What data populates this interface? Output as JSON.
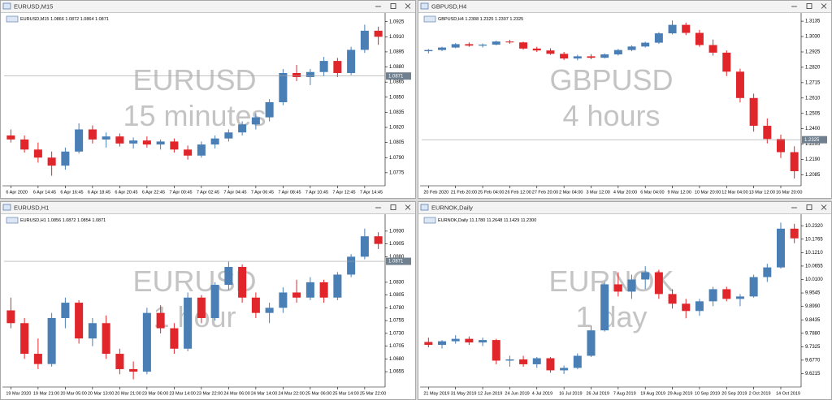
{
  "chart_data": [
    {
      "type": "candlestick",
      "title": "EURUSD,M15",
      "info": "EURUSD,M15  1.0866 1.0872 1.0864 1.0871",
      "watermark": [
        "EURUSD",
        "15 minutes"
      ],
      "up_color": "#4a7fb5",
      "down_color": "#e0262b",
      "categories": [
        "6 Apr 2020",
        null,
        "6 Apr 14:45",
        null,
        "6 Apr 16:45",
        null,
        "6 Apr 18:45",
        null,
        "6 Apr 20:45",
        null,
        "6 Apr 22:45",
        null,
        "7 Apr 00:45",
        null,
        "7 Apr 02:45",
        null,
        "7 Apr 04:45",
        null,
        "7 Apr 06:45",
        null,
        "7 Apr 08:45",
        null,
        "7 Apr 10:45",
        null,
        "7 Apr 12:45",
        null,
        "7 Apr 14:45",
        null
      ],
      "open": [
        1.0812,
        1.0808,
        1.0798,
        1.079,
        1.0782,
        1.0796,
        1.0818,
        1.0808,
        1.0811,
        1.0804,
        1.0807,
        1.0803,
        1.0806,
        1.0798,
        1.0792,
        1.0803,
        1.0809,
        1.0815,
        1.0823,
        1.083,
        1.0845,
        1.0874,
        1.087,
        1.0875,
        1.0886,
        1.0874,
        1.0897,
        1.0916
      ],
      "high": [
        1.0818,
        1.0812,
        1.0805,
        1.0796,
        1.08,
        1.0824,
        1.0822,
        1.0815,
        1.0814,
        1.081,
        1.0811,
        1.0808,
        1.0809,
        1.0802,
        1.0806,
        1.0812,
        1.0818,
        1.0826,
        1.0834,
        1.0848,
        1.0878,
        1.0882,
        1.0878,
        1.089,
        1.0889,
        1.09,
        1.0922,
        1.092
      ],
      "low": [
        1.0805,
        1.0795,
        1.0785,
        1.0772,
        1.0778,
        1.0794,
        1.0804,
        1.08,
        1.0801,
        1.0799,
        1.08,
        1.0798,
        1.0795,
        1.0788,
        1.079,
        1.0799,
        1.0806,
        1.0812,
        1.0818,
        1.0826,
        1.0842,
        1.0866,
        1.0862,
        1.0871,
        1.087,
        1.0872,
        1.0894,
        1.0902
      ],
      "close": [
        1.0808,
        1.0798,
        1.079,
        1.0782,
        1.0796,
        1.0818,
        1.0808,
        1.0811,
        1.0804,
        1.0807,
        1.0803,
        1.0806,
        1.0798,
        1.0792,
        1.0803,
        1.0809,
        1.0815,
        1.0823,
        1.083,
        1.0845,
        1.0874,
        1.087,
        1.0875,
        1.0886,
        1.0874,
        1.0897,
        1.0916,
        1.091
      ],
      "ylim": [
        1.0762,
        1.0932
      ],
      "yticks": [
        1.0925,
        {
          "value": 1.091,
          "label": "1.0910"
        },
        1.0895,
        {
          "value": 1.088,
          "label": "1.0880"
        },
        1.0865,
        {
          "value": 1.085,
          "label": "1.0850"
        },
        1.0835,
        {
          "value": 1.082,
          "label": "1.0820"
        },
        1.0805,
        {
          "value": 1.079,
          "label": "1.0790"
        },
        1.0775
      ],
      "price_line": 1.0871
    },
    {
      "type": "candlestick",
      "title": "GBPUSD,H4",
      "info": "GBPUSD,H4  1.2308 1.2325 1.2307 1.2325",
      "watermark": [
        "GBPUSD",
        "4 hours"
      ],
      "up_color": "#4a7fb5",
      "down_color": "#e0262b",
      "categories": [
        "20 Feb 2020",
        null,
        "21 Feb 20:00",
        null,
        "25 Feb 04:00",
        null,
        "26 Feb 12:00",
        null,
        "27 Feb 20:00",
        null,
        "2 Mar 04:00",
        null,
        "3 Mar 12:00",
        null,
        "4 Mar 20:00",
        null,
        "6 Mar 04:00",
        null,
        "9 Mar 12:00",
        null,
        "10 Mar 20:00",
        null,
        "12 Mar 04:00",
        null,
        "13 Mar 12:00",
        null,
        "16 Mar 20:00",
        null
      ],
      "open": [
        1.293,
        1.2938,
        1.2955,
        1.2978,
        1.2968,
        1.2975,
        1.2996,
        1.299,
        1.2948,
        1.2935,
        1.2912,
        1.288,
        1.2895,
        1.2885,
        1.2908,
        1.2938,
        1.2962,
        1.2988,
        1.3052,
        1.311,
        1.3055,
        1.2972,
        1.292,
        1.279,
        1.261,
        1.242,
        1.233,
        1.224
      ],
      "high": [
        1.2945,
        1.296,
        1.2985,
        1.299,
        1.2982,
        1.3002,
        1.3008,
        1.2995,
        1.296,
        1.295,
        1.2925,
        1.2905,
        1.291,
        1.2915,
        1.2945,
        1.297,
        1.2995,
        1.306,
        1.314,
        1.3125,
        1.3075,
        1.301,
        1.2935,
        1.281,
        1.264,
        1.247,
        1.236,
        1.228
      ],
      "low": [
        1.2915,
        1.293,
        1.295,
        1.296,
        1.2955,
        1.297,
        1.298,
        1.294,
        1.2925,
        1.2905,
        1.287,
        1.2868,
        1.2875,
        1.288,
        1.29,
        1.293,
        1.2955,
        1.298,
        1.3045,
        1.304,
        1.296,
        1.29,
        1.276,
        1.258,
        1.238,
        1.23,
        1.22,
        1.206
      ],
      "close": [
        1.2938,
        1.2955,
        1.2978,
        1.2968,
        1.2975,
        1.2996,
        1.299,
        1.2948,
        1.2935,
        1.2912,
        1.288,
        1.2895,
        1.2885,
        1.2908,
        1.2938,
        1.2962,
        1.2988,
        1.3052,
        1.311,
        1.3055,
        1.2972,
        1.292,
        1.279,
        1.261,
        1.242,
        1.233,
        1.224,
        1.211
      ],
      "ylim": [
        1.201,
        1.318
      ],
      "yticks": [
        1.3135,
        {
          "value": 1.303,
          "label": "1.3030"
        },
        1.2925,
        {
          "value": 1.282,
          "label": "1.2820"
        },
        1.2715,
        {
          "value": 1.261,
          "label": "1.2610"
        },
        1.2505,
        {
          "value": 1.24,
          "label": "1.2400"
        },
        1.2295,
        {
          "value": 1.219,
          "label": "1.2190"
        },
        1.2085
      ],
      "price_line": 1.2325
    },
    {
      "type": "candlestick",
      "title": "EURUSD,H1",
      "info": "EURUSD,H1  1.0856 1.0872 1.0854 1.0871",
      "watermark": [
        "EURUSD",
        "1 hour"
      ],
      "up_color": "#4a7fb5",
      "down_color": "#e0262b",
      "categories": [
        "19 Mar 2020",
        null,
        "19 Mar 21:00",
        null,
        "20 Mar 05:00",
        null,
        "20 Mar 13:00",
        null,
        "20 Mar 21:00",
        null,
        "23 Mar 06:00",
        null,
        "23 Mar 14:00",
        null,
        "23 Mar 22:00",
        null,
        "24 Mar 06:00",
        null,
        "24 Mar 14:00",
        null,
        "24 Mar 22:00",
        null,
        "25 Mar 06:00",
        null,
        "25 Mar 14:00",
        null,
        "25 Mar 22:00",
        null
      ],
      "open": [
        1.0775,
        1.075,
        1.069,
        1.067,
        1.076,
        1.079,
        1.072,
        1.075,
        1.069,
        1.066,
        1.0655,
        1.077,
        1.074,
        1.07,
        1.08,
        1.076,
        1.0825,
        1.086,
        1.08,
        1.077,
        1.078,
        1.081,
        1.08,
        1.083,
        1.08,
        1.0845,
        1.088,
        1.092
      ],
      "high": [
        1.08,
        1.076,
        1.072,
        1.077,
        1.08,
        1.0795,
        1.076,
        1.0765,
        1.07,
        1.0675,
        1.078,
        1.0785,
        1.075,
        1.081,
        1.0805,
        1.083,
        1.087,
        1.0865,
        1.081,
        1.079,
        1.082,
        1.0835,
        1.084,
        1.0835,
        1.085,
        1.0885,
        1.0935,
        1.0928
      ],
      "low": [
        1.074,
        1.068,
        1.066,
        1.0665,
        1.074,
        1.071,
        1.0705,
        1.068,
        1.065,
        1.064,
        1.065,
        1.073,
        1.069,
        1.0695,
        1.075,
        1.0755,
        1.0815,
        1.079,
        1.076,
        1.075,
        1.077,
        1.079,
        1.0795,
        1.079,
        1.0795,
        1.084,
        1.0875,
        1.0895
      ],
      "close": [
        1.075,
        1.069,
        1.067,
        1.076,
        1.079,
        1.072,
        1.075,
        1.069,
        1.066,
        1.0655,
        1.077,
        1.074,
        1.07,
        1.08,
        1.076,
        1.0825,
        1.086,
        1.08,
        1.077,
        1.078,
        1.081,
        1.08,
        1.083,
        1.08,
        1.0845,
        1.088,
        1.092,
        1.0905
      ],
      "ylim": [
        1.0625,
        1.096
      ],
      "yticks": [
        {
          "value": 1.093,
          "label": "1.0930"
        },
        1.0905,
        {
          "value": 1.088,
          "label": "1.0880"
        },
        {
          "value": 1.083,
          "label": "1.0830"
        },
        1.0805,
        {
          "value": 1.078,
          "label": "1.0780"
        },
        1.0755,
        {
          "value": 1.073,
          "label": "1.0730"
        },
        1.0705,
        {
          "value": 1.068,
          "label": "1.0680"
        },
        1.0655
      ],
      "price_line": 1.0871
    },
    {
      "type": "candlestick",
      "title": "EURNOK,Daily",
      "info": "EURNOK,Daily  11.1780 11.2648 11.1429 11.2300",
      "watermark": [
        "EURNOK",
        "1 day"
      ],
      "up_color": "#4a7fb5",
      "down_color": "#e0262b",
      "categories": [
        "21 May 2019",
        null,
        "31 May 2019",
        null,
        "12 Jun 2019",
        null,
        "24 Jun 2019",
        null,
        "4 Jul 2019",
        null,
        "16 Jul 2019",
        null,
        "26 Jul 2019",
        null,
        "7 Aug 2019",
        null,
        "19 Aug 2019",
        null,
        "29 Aug 2019",
        null,
        "10 Sep 2019",
        null,
        "20 Sep 2019",
        null,
        "2 Oct 2019",
        null,
        "14 Oct 2019",
        null
      ],
      "open": [
        9.752,
        9.74,
        9.755,
        9.765,
        9.75,
        9.76,
        9.675,
        9.68,
        9.66,
        9.685,
        9.635,
        9.645,
        9.695,
        9.8,
        9.99,
        9.96,
        10.01,
        10.04,
        9.95,
        9.91,
        9.88,
        9.92,
        9.97,
        9.93,
        9.94,
        10.02,
        10.06,
        10.22
      ],
      "high": [
        9.77,
        9.76,
        9.78,
        9.775,
        9.77,
        9.765,
        9.695,
        9.695,
        9.69,
        9.69,
        9.655,
        9.705,
        9.82,
        10.0,
        10.04,
        10.03,
        10.065,
        10.05,
        9.97,
        9.93,
        9.93,
        9.98,
        9.98,
        9.95,
        10.03,
        10.075,
        10.245,
        10.24
      ],
      "low": [
        9.73,
        9.725,
        9.745,
        9.74,
        9.735,
        9.66,
        9.65,
        9.65,
        9.645,
        9.625,
        9.62,
        9.64,
        9.69,
        9.795,
        9.94,
        9.93,
        9.97,
        9.93,
        9.89,
        9.85,
        9.86,
        9.9,
        9.92,
        9.9,
        9.935,
        10.0,
        10.055,
        10.16
      ],
      "close": [
        9.74,
        9.755,
        9.765,
        9.75,
        9.76,
        9.675,
        9.68,
        9.66,
        9.685,
        9.635,
        9.645,
        9.695,
        9.8,
        9.99,
        9.96,
        10.01,
        10.04,
        9.95,
        9.91,
        9.88,
        9.92,
        9.97,
        9.93,
        9.94,
        10.02,
        10.06,
        10.22,
        10.18
      ],
      "ylim": [
        9.566,
        10.273
      ],
      "yticks": [
        {
          "value": 10.232,
          "label": "10.2320"
        },
        10.1765,
        {
          "value": 10.121,
          "label": "10.1210"
        },
        10.0655,
        {
          "value": 10.01,
          "label": "10.0100"
        },
        9.9545,
        {
          "value": 9.899,
          "label": "9.8990"
        },
        9.8435,
        {
          "value": 9.788,
          "label": "9.7880"
        },
        9.7325,
        {
          "value": 9.677,
          "label": "9.6770"
        },
        9.6215
      ]
    }
  ]
}
